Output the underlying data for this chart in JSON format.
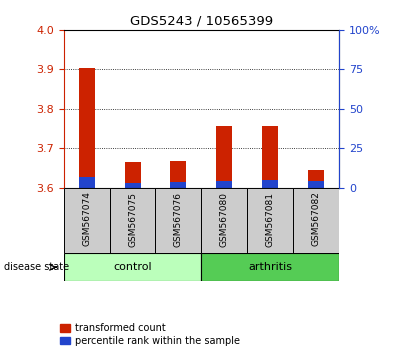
{
  "title": "GDS5243 / 10565399",
  "samples": [
    "GSM567074",
    "GSM567075",
    "GSM567076",
    "GSM567080",
    "GSM567081",
    "GSM567082"
  ],
  "groups": [
    "control",
    "control",
    "control",
    "arthritis",
    "arthritis",
    "arthritis"
  ],
  "red_values": [
    3.905,
    3.665,
    3.668,
    3.756,
    3.757,
    3.645
  ],
  "blue_values": [
    3.627,
    3.612,
    3.615,
    3.618,
    3.62,
    3.617
  ],
  "ymin": 3.6,
  "ymax": 4.0,
  "yticks": [
    3.6,
    3.7,
    3.8,
    3.9,
    4.0
  ],
  "right_yticks": [
    0,
    25,
    50,
    75,
    100
  ],
  "right_yticklabels": [
    "0",
    "25",
    "50",
    "75",
    "100%"
  ],
  "bar_width": 0.35,
  "red_color": "#cc2200",
  "blue_color": "#2244cc",
  "control_color": "#bbffbb",
  "arthritis_color": "#55cc55",
  "label_bg_color": "#cccccc",
  "left_tick_color": "#cc2200",
  "right_tick_color": "#2244cc",
  "legend_red_label": "transformed count",
  "legend_blue_label": "percentile rank within the sample",
  "disease_state_label": "disease state",
  "control_label": "control",
  "arthritis_label": "arthritis"
}
